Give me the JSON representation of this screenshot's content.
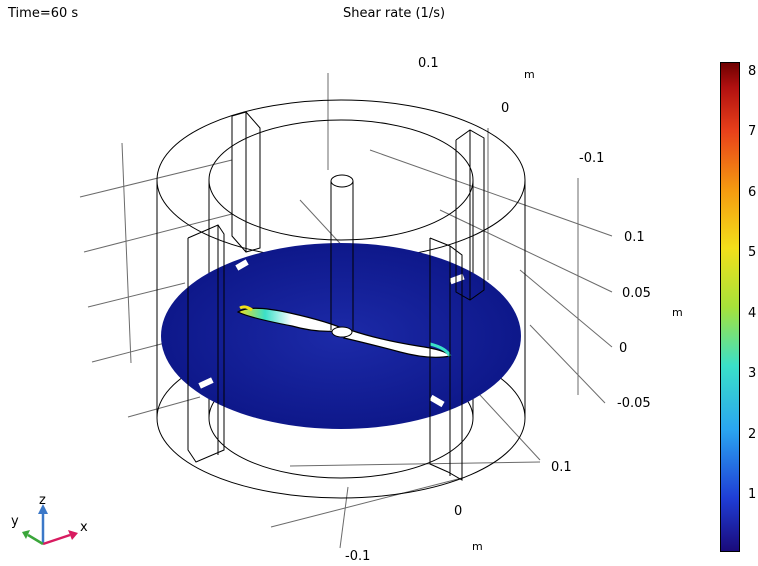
{
  "header": {
    "time_label": "Time=60 s",
    "plot_title": "Shear rate (1/s)"
  },
  "axes": {
    "top_unit": "m",
    "right_unit": "m",
    "bottom_unit": "m",
    "top_ticks": [
      "0.1",
      "0",
      "-0.1"
    ],
    "right_ticks": [
      "0.1",
      "0.05",
      "0",
      "-0.05"
    ],
    "bottom_ticks": [
      "0.1",
      "0",
      "-0.1"
    ]
  },
  "colorbar": {
    "ticks": [
      "8",
      "7",
      "6",
      "5",
      "4",
      "3",
      "2",
      "1"
    ],
    "colors": [
      "#1a0a7a",
      "#1f3ed6",
      "#2aa6f0",
      "#3ae0c8",
      "#a6e23a",
      "#f2e01a",
      "#f59a10",
      "#e8401a",
      "#b01010",
      "#6e0000"
    ]
  },
  "triad": {
    "x_label": "x",
    "y_label": "y",
    "z_label": "z",
    "x_color": "#d81b60",
    "y_color": "#3aa63a",
    "z_color": "#3b78c8"
  },
  "surface": {
    "base_color": "#0e1a8a",
    "highlight_color": "#ffffff"
  }
}
